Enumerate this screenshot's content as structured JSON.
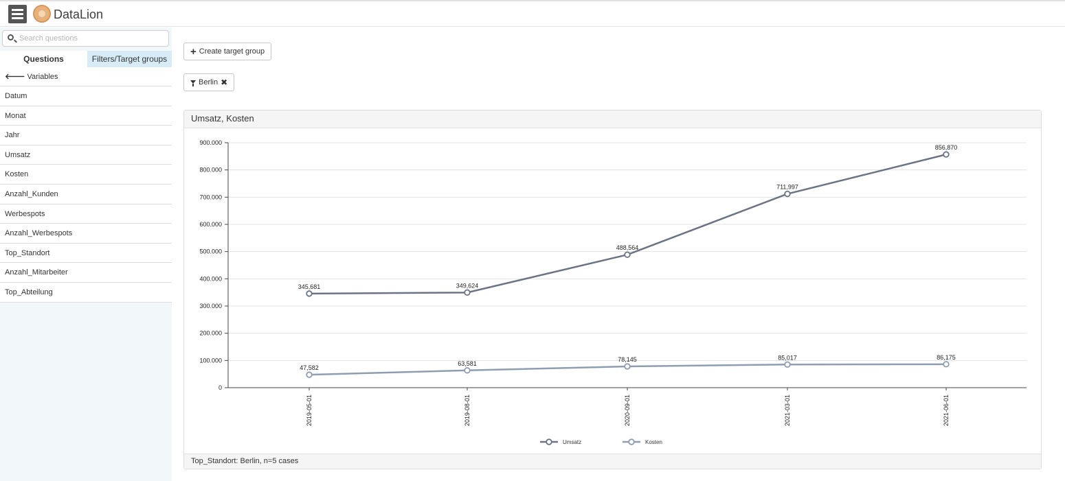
{
  "app": {
    "title": "DataLion"
  },
  "header": {
    "menu_icon": "hamburger-menu-icon",
    "logo_icon": "lion-logo-icon"
  },
  "sidebar": {
    "search": {
      "placeholder": "Search questions",
      "value": ""
    },
    "tabs": [
      {
        "label": "Questions"
      },
      {
        "label": "Filters/Target groups"
      }
    ],
    "back_label": "Variables",
    "variables": [
      "Datum",
      "Monat",
      "Jahr",
      "Umsatz",
      "Kosten",
      "Anzahl_Kunden",
      "Werbespots",
      "Anzahl_Werbespots",
      "Top_Standort",
      "Anzahl_Mitarbeiter",
      "Top_Abteilung"
    ]
  },
  "toolbar": {
    "create_label": "Create target group",
    "filter_label": "Berlin"
  },
  "panel": {
    "title": "Umsatz, Kosten",
    "footer": "Top_Standort: Berlin, n=5 cases"
  },
  "chart_data": {
    "type": "line",
    "title": "Umsatz, Kosten",
    "x": [
      "2019-05-01",
      "2019-08-01",
      "2020-09-01",
      "2021-03-01",
      "2021-06-01"
    ],
    "series": [
      {
        "name": "Umsatz",
        "values": [
          345681,
          349624,
          488564,
          711997,
          856870
        ],
        "labels": [
          "345,681",
          "349,624",
          "488,564",
          "711,997",
          "856,870"
        ],
        "color": "#6b7385"
      },
      {
        "name": "Kosten",
        "values": [
          47582,
          63581,
          78145,
          85017,
          86175
        ],
        "labels": [
          "47,582",
          "63,581",
          "78,145",
          "85,017",
          "86,175"
        ],
        "color": "#8e9db0"
      }
    ],
    "yticks": [
      "0",
      "100.000",
      "200.000",
      "300.000",
      "400.000",
      "500.000",
      "600.000",
      "700.000",
      "800.000",
      "900.000"
    ],
    "ylim": [
      0,
      900000
    ],
    "grid": true,
    "legend": "bottom-center"
  }
}
